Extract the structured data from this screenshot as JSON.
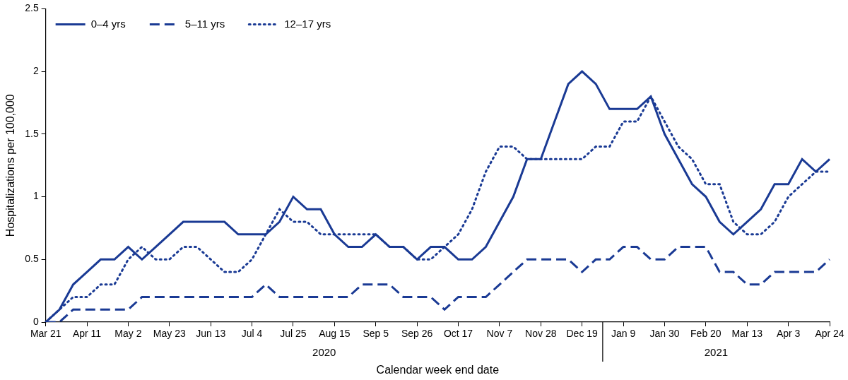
{
  "chart_data": {
    "type": "line",
    "x_label": "Calendar week end date",
    "y_label": "Hospitalizations per 100,000",
    "annotations": [
      "2020",
      "2021"
    ],
    "categories": [
      "Mar 21",
      null,
      null,
      "Apr 11",
      null,
      null,
      "May 2",
      null,
      null,
      "May 23",
      null,
      null,
      "Jun 13",
      null,
      null,
      "Jul 4",
      null,
      null,
      "Jul 25",
      null,
      null,
      "Aug 15",
      null,
      null,
      "Sep 5",
      null,
      null,
      "Sep 26",
      null,
      null,
      "Oct 17",
      null,
      null,
      "Nov 7",
      null,
      null,
      "Nov 28",
      null,
      null,
      "Dec 19",
      null,
      null,
      "Jan 9",
      null,
      null,
      "Jan 30",
      null,
      null,
      "Feb 20",
      null,
      null,
      "Mar 13",
      null,
      null,
      "Apr 3",
      null,
      null,
      "Apr 24"
    ],
    "series": [
      {
        "name": "0–4 yrs",
        "color": "#1a3a94",
        "line_style": "solid",
        "values": [
          0,
          0.1,
          0.3,
          0.4,
          0.5,
          0.5,
          0.6,
          0.5,
          0.6,
          0.7,
          0.8,
          0.8,
          0.8,
          0.8,
          0.7,
          0.7,
          0.7,
          0.8,
          1.0,
          0.9,
          0.9,
          0.7,
          0.6,
          0.6,
          0.7,
          0.6,
          0.6,
          0.5,
          0.6,
          0.6,
          0.5,
          0.5,
          0.6,
          0.8,
          1.0,
          1.3,
          1.3,
          1.6,
          1.9,
          2.0,
          1.9,
          1.7,
          1.7,
          1.7,
          1.8,
          1.5,
          1.3,
          1.1,
          1.0,
          0.8,
          0.7,
          0.8,
          0.9,
          1.1,
          1.1,
          1.3,
          1.2,
          1.3
        ]
      },
      {
        "name": "5–11 yrs",
        "color": "#1a3a94",
        "line_style": "dashed",
        "values": [
          0,
          0,
          0.1,
          0.1,
          0.1,
          0.1,
          0.1,
          0.2,
          0.2,
          0.2,
          0.2,
          0.2,
          0.2,
          0.2,
          0.2,
          0.2,
          0.3,
          0.2,
          0.2,
          0.2,
          0.2,
          0.2,
          0.2,
          0.3,
          0.3,
          0.3,
          0.2,
          0.2,
          0.2,
          0.1,
          0.2,
          0.2,
          0.2,
          0.3,
          0.4,
          0.5,
          0.5,
          0.5,
          0.5,
          0.4,
          0.5,
          0.5,
          0.6,
          0.6,
          0.5,
          0.5,
          0.6,
          0.6,
          0.6,
          0.4,
          0.4,
          0.3,
          0.3,
          0.4,
          0.4,
          0.4,
          0.4,
          0.5
        ]
      },
      {
        "name": "12–17 yrs",
        "color": "#1a3a94",
        "line_style": "dotted",
        "values": [
          0,
          0.1,
          0.2,
          0.2,
          0.3,
          0.3,
          0.5,
          0.6,
          0.5,
          0.5,
          0.6,
          0.6,
          0.5,
          0.4,
          0.4,
          0.5,
          0.7,
          0.9,
          0.8,
          0.8,
          0.7,
          0.7,
          0.7,
          0.7,
          0.7,
          0.6,
          0.6,
          0.5,
          0.5,
          0.6,
          0.7,
          0.9,
          1.2,
          1.4,
          1.4,
          1.3,
          1.3,
          1.3,
          1.3,
          1.3,
          1.4,
          1.4,
          1.6,
          1.6,
          1.8,
          1.6,
          1.4,
          1.3,
          1.1,
          1.1,
          0.8,
          0.7,
          0.7,
          0.8,
          1.0,
          1.1,
          1.2,
          1.2
        ]
      }
    ],
    "ylim": [
      0,
      2.5
    ],
    "yticks": [
      0,
      0.5,
      1,
      1.5,
      2,
      2.5
    ],
    "grid": false,
    "legend": "upper left"
  }
}
